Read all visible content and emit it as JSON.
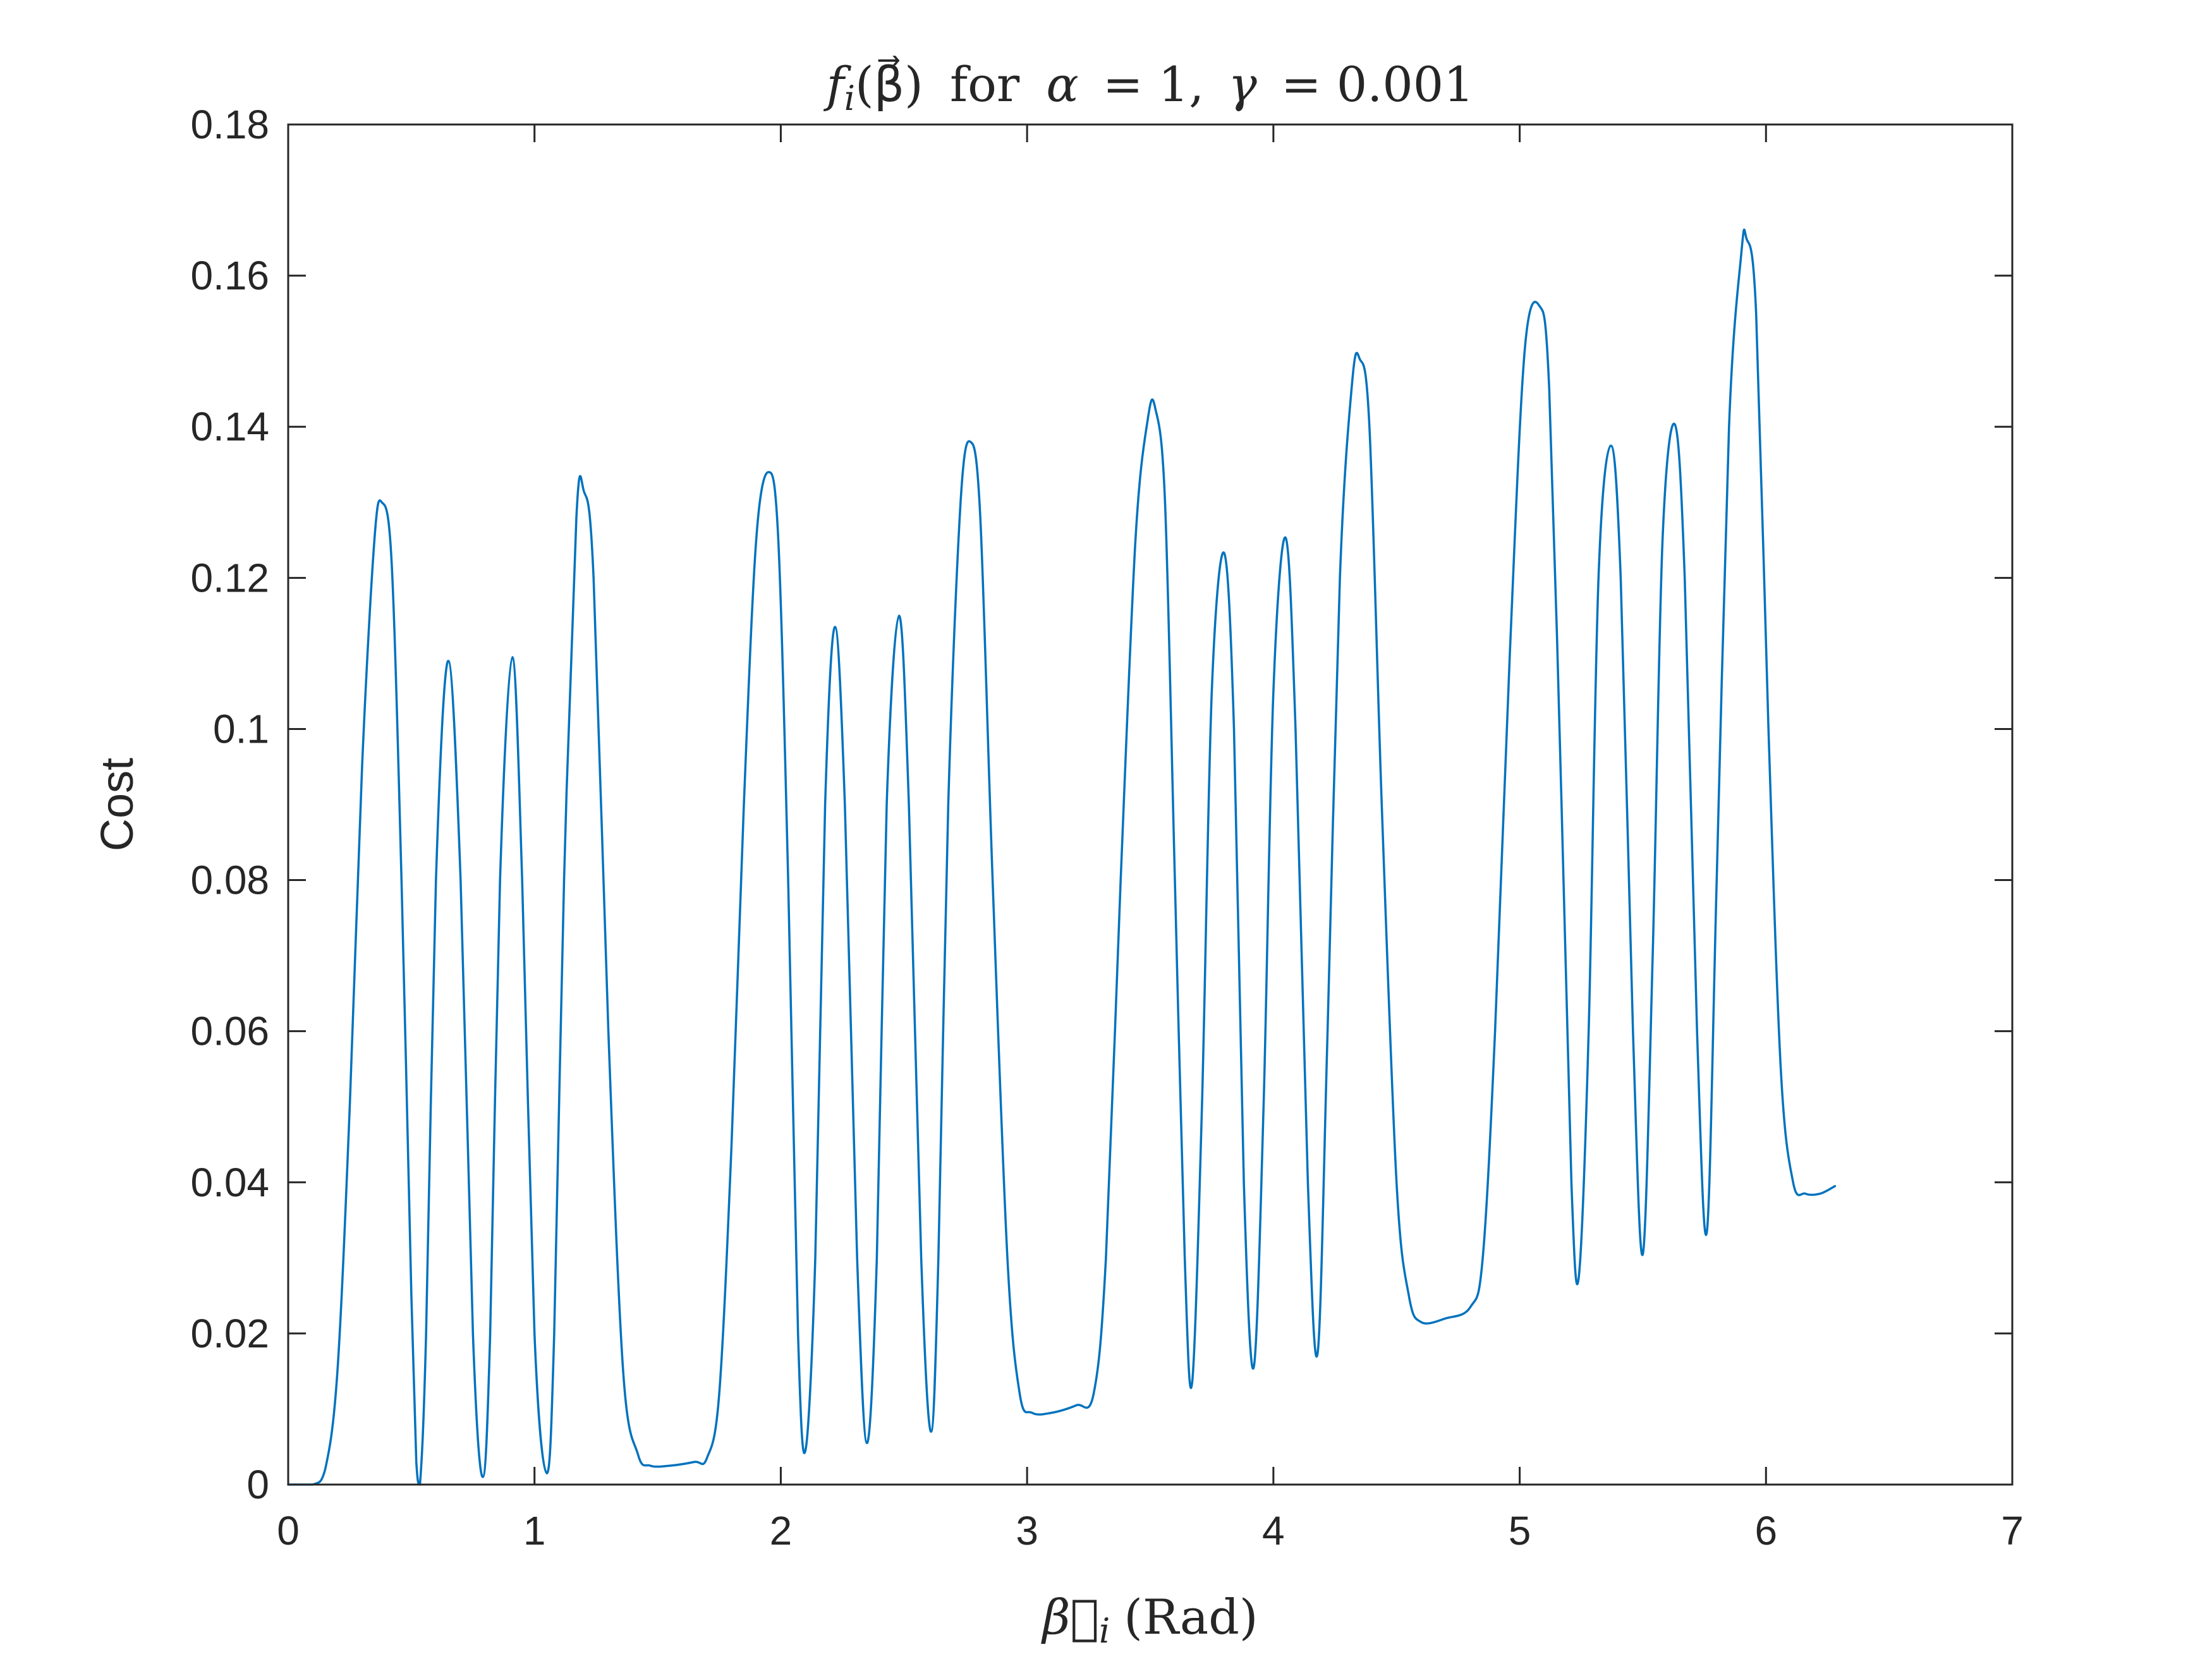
{
  "chart_data": {
    "type": "line",
    "title": "f_i(β⃗) for α = 1, γ = 0.001",
    "title_parts": {
      "f": "f",
      "sub_i": "i",
      "beta_arg": "(β⃗)",
      "for": "for",
      "alpha": "α",
      "alpha_val": "= 1,",
      "gamma": "γ",
      "gamma_val": "= 0.001"
    },
    "xlabel": "β⃗_i (Rad)",
    "xlabel_parts": {
      "beta": "β⃗",
      "sub_i": "i",
      "unit": "(Rad)"
    },
    "ylabel": "Cost",
    "xlim": [
      0,
      7
    ],
    "ylim": [
      0,
      0.18
    ],
    "xticks": [
      "0",
      "1",
      "2",
      "3",
      "4",
      "5",
      "6",
      "7"
    ],
    "yticks": [
      "0",
      "0.02",
      "0.04",
      "0.06",
      "0.08",
      "0.1",
      "0.12",
      "0.14",
      "0.16",
      "0.18"
    ],
    "grid": false,
    "line_color": "#0072BD",
    "series": [
      {
        "points": [
          [
            0.0,
            0.0
          ],
          [
            0.1,
            0.0
          ],
          [
            0.15,
            0.002
          ],
          [
            0.2,
            0.015
          ],
          [
            0.25,
            0.05
          ],
          [
            0.3,
            0.095
          ],
          [
            0.35,
            0.125
          ],
          [
            0.38,
            0.13
          ],
          [
            0.42,
            0.122
          ],
          [
            0.46,
            0.08
          ],
          [
            0.5,
            0.025
          ],
          [
            0.52,
            0.003
          ],
          [
            0.535,
            0.0
          ],
          [
            0.56,
            0.02
          ],
          [
            0.6,
            0.08
          ],
          [
            0.65,
            0.109
          ],
          [
            0.7,
            0.08
          ],
          [
            0.75,
            0.02
          ],
          [
            0.79,
            0.001
          ],
          [
            0.82,
            0.02
          ],
          [
            0.86,
            0.08
          ],
          [
            0.91,
            0.1095
          ],
          [
            0.95,
            0.08
          ],
          [
            1.0,
            0.02
          ],
          [
            1.05,
            0.0015
          ],
          [
            1.08,
            0.02
          ],
          [
            1.12,
            0.08
          ],
          [
            1.17,
            0.128
          ],
          [
            1.2,
            0.1315
          ],
          [
            1.24,
            0.12
          ],
          [
            1.3,
            0.06
          ],
          [
            1.36,
            0.015
          ],
          [
            1.42,
            0.004
          ],
          [
            1.47,
            0.0025
          ],
          [
            1.55,
            0.0025
          ],
          [
            1.65,
            0.003
          ],
          [
            1.7,
            0.0035
          ],
          [
            1.75,
            0.012
          ],
          [
            1.8,
            0.045
          ],
          [
            1.85,
            0.09
          ],
          [
            1.9,
            0.125
          ],
          [
            1.95,
            0.134
          ],
          [
            1.99,
            0.125
          ],
          [
            2.03,
            0.08
          ],
          [
            2.07,
            0.02
          ],
          [
            2.1,
            0.0045
          ],
          [
            2.14,
            0.03
          ],
          [
            2.18,
            0.09
          ],
          [
            2.22,
            0.1135
          ],
          [
            2.26,
            0.09
          ],
          [
            2.31,
            0.03
          ],
          [
            2.35,
            0.0055
          ],
          [
            2.39,
            0.03
          ],
          [
            2.43,
            0.09
          ],
          [
            2.48,
            0.115
          ],
          [
            2.52,
            0.09
          ],
          [
            2.57,
            0.03
          ],
          [
            2.61,
            0.007
          ],
          [
            2.64,
            0.03
          ],
          [
            2.68,
            0.09
          ],
          [
            2.73,
            0.13
          ],
          [
            2.77,
            0.138
          ],
          [
            2.81,
            0.128
          ],
          [
            2.86,
            0.08
          ],
          [
            2.92,
            0.03
          ],
          [
            2.97,
            0.012
          ],
          [
            3.02,
            0.0095
          ],
          [
            3.1,
            0.0095
          ],
          [
            3.2,
            0.0105
          ],
          [
            3.27,
            0.012
          ],
          [
            3.32,
            0.03
          ],
          [
            3.38,
            0.08
          ],
          [
            3.44,
            0.125
          ],
          [
            3.49,
            0.141
          ],
          [
            3.52,
            0.1425
          ],
          [
            3.56,
            0.13
          ],
          [
            3.6,
            0.08
          ],
          [
            3.64,
            0.03
          ],
          [
            3.67,
            0.0135
          ],
          [
            3.71,
            0.05
          ],
          [
            3.75,
            0.105
          ],
          [
            3.8,
            0.1233
          ],
          [
            3.84,
            0.1
          ],
          [
            3.88,
            0.04
          ],
          [
            3.92,
            0.0155
          ],
          [
            3.96,
            0.05
          ],
          [
            4.0,
            0.105
          ],
          [
            4.05,
            0.1253
          ],
          [
            4.09,
            0.1
          ],
          [
            4.14,
            0.04
          ],
          [
            4.18,
            0.0175
          ],
          [
            4.22,
            0.06
          ],
          [
            4.27,
            0.12
          ],
          [
            4.32,
            0.146
          ],
          [
            4.35,
            0.149
          ],
          [
            4.39,
            0.14
          ],
          [
            4.44,
            0.09
          ],
          [
            4.5,
            0.04
          ],
          [
            4.55,
            0.025
          ],
          [
            4.6,
            0.0215
          ],
          [
            4.7,
            0.022
          ],
          [
            4.8,
            0.0235
          ],
          [
            4.85,
            0.03
          ],
          [
            4.9,
            0.06
          ],
          [
            4.96,
            0.11
          ],
          [
            5.02,
            0.15
          ],
          [
            5.08,
            0.156
          ],
          [
            5.12,
            0.145
          ],
          [
            5.17,
            0.09
          ],
          [
            5.21,
            0.04
          ],
          [
            5.24,
            0.0275
          ],
          [
            5.28,
            0.06
          ],
          [
            5.32,
            0.12
          ],
          [
            5.37,
            0.1375
          ],
          [
            5.41,
            0.12
          ],
          [
            5.46,
            0.06
          ],
          [
            5.5,
            0.0305
          ],
          [
            5.54,
            0.07
          ],
          [
            5.58,
            0.125
          ],
          [
            5.63,
            0.1403
          ],
          [
            5.67,
            0.12
          ],
          [
            5.72,
            0.06
          ],
          [
            5.76,
            0.0335
          ],
          [
            5.8,
            0.08
          ],
          [
            5.85,
            0.14
          ],
          [
            5.9,
            0.163
          ],
          [
            5.92,
            0.165
          ],
          [
            5.96,
            0.155
          ],
          [
            6.01,
            0.1
          ],
          [
            6.06,
            0.055
          ],
          [
            6.11,
            0.04
          ],
          [
            6.16,
            0.0385
          ],
          [
            6.22,
            0.0385
          ],
          [
            6.28,
            0.0395
          ]
        ]
      }
    ]
  }
}
